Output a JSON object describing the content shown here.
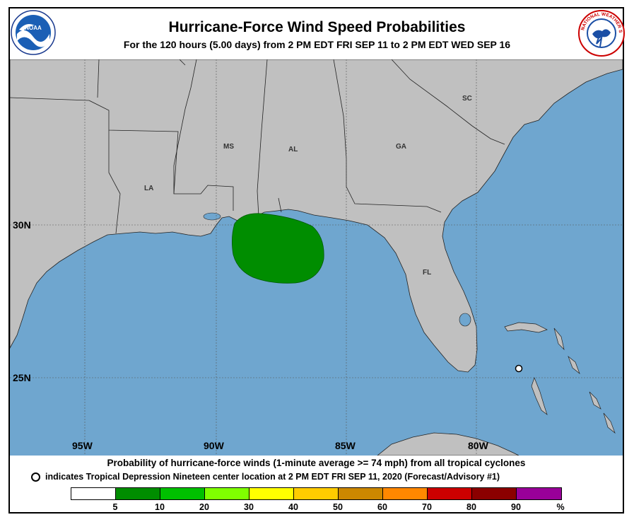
{
  "header": {
    "title": "Hurricane-Force Wind Speed Probabilities",
    "subtitle": "For the 120 hours (5.00 days) from 2 PM EDT FRI SEP 11 to 2 PM EDT WED SEP 16"
  },
  "map": {
    "lat_labels": [
      "30N",
      "25N"
    ],
    "lon_labels": [
      "95W",
      "90W",
      "85W",
      "80W"
    ],
    "state_labels": [
      "LA",
      "MS",
      "AL",
      "GA",
      "SC",
      "FL"
    ],
    "colors": {
      "ocean": "#6fa6cf",
      "land": "#c0c0c0",
      "prob_5_10": "#008d00",
      "boundary": "#222222",
      "grid": "#555555"
    }
  },
  "footer": {
    "line1": "Probability of hurricane-force winds (1-minute average >= 74 mph) from all tropical cyclones",
    "line2": "indicates Tropical Depression Nineteen center location at 2 PM EDT FRI SEP 11, 2020 (Forecast/Advisory #1)"
  },
  "legend": {
    "colors": [
      "#ffffff",
      "#008d00",
      "#00c000",
      "#80ff00",
      "#ffff00",
      "#ffcc00",
      "#cc8800",
      "#ff8800",
      "#cc0000",
      "#8b0000",
      "#990099"
    ],
    "ticks": [
      "5",
      "10",
      "20",
      "30",
      "40",
      "50",
      "60",
      "70",
      "80",
      "90",
      "%"
    ]
  }
}
